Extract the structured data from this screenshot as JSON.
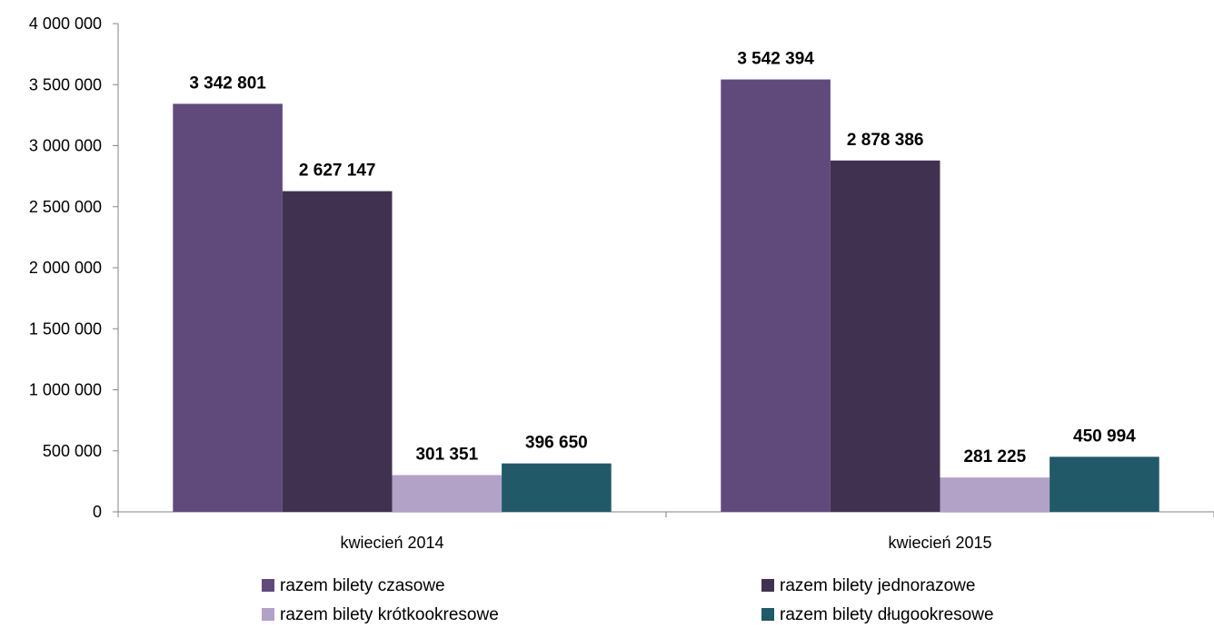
{
  "chart_data": {
    "type": "bar",
    "title": "",
    "xlabel": "",
    "ylabel": "",
    "categories": [
      "kwiecień 2014",
      "kwiecień 2015"
    ],
    "ylim": [
      0,
      4000000
    ],
    "yticks": [
      0,
      500000,
      1000000,
      1500000,
      2000000,
      2500000,
      3000000,
      3500000,
      4000000
    ],
    "ytick_labels": [
      "0",
      "500 000",
      "1 000 000",
      "1 500 000",
      "2 000 000",
      "2 500 000",
      "3 000 000",
      "3 500 000",
      "4 000 000"
    ],
    "grid": false,
    "legend_position": "bottom",
    "series": [
      {
        "name": "razem bilety czasowe",
        "color": "#604a7b",
        "values": [
          3342801,
          3542394
        ],
        "labels": [
          "3 342 801",
          "3 542 394"
        ]
      },
      {
        "name": "razem bilety jednorazowe",
        "color": "#403151",
        "values": [
          2627147,
          2878386
        ],
        "labels": [
          "2 627 147",
          "2 878 386"
        ]
      },
      {
        "name": "razem bilety krótkookresowe",
        "color": "#b3a2c7",
        "values": [
          301351,
          281225
        ],
        "labels": [
          "301 351",
          "281 225"
        ]
      },
      {
        "name": "razem bilety długookresowe",
        "color": "#215968",
        "values": [
          396650,
          450994
        ],
        "labels": [
          "396 650",
          "450 994"
        ]
      }
    ]
  }
}
